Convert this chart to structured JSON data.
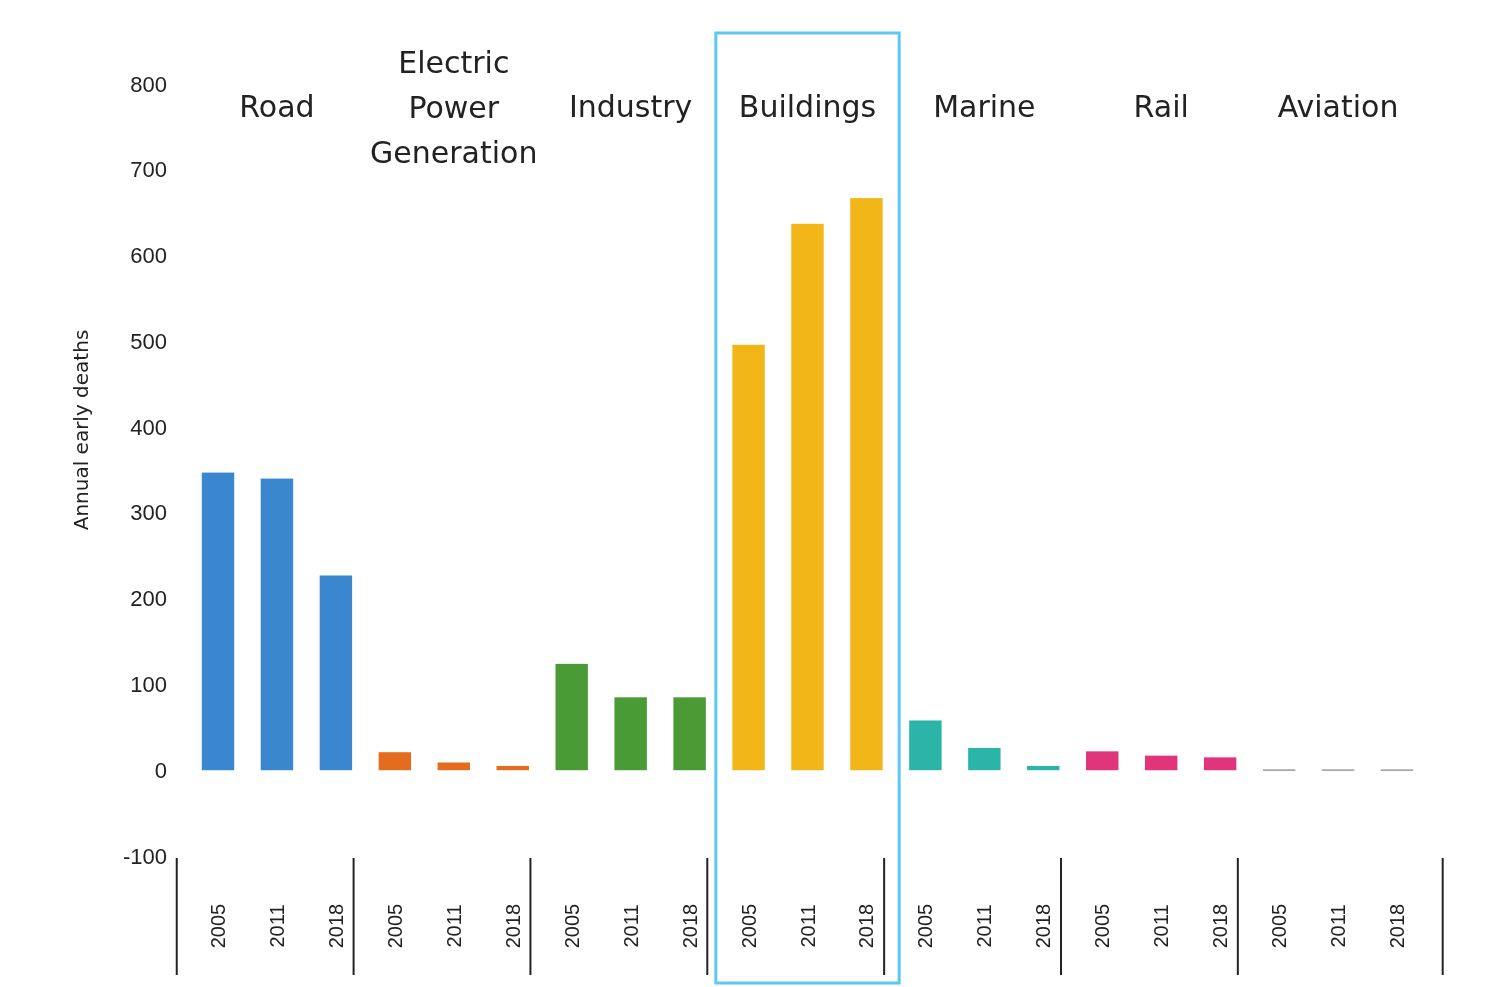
{
  "chart_data": {
    "type": "bar",
    "ylabel": "Annual early deaths",
    "annotations": [
      "Road",
      "Electric Power Generation",
      "Industry",
      "Buildings",
      "Marine",
      "Rail",
      "Aviation"
    ],
    "categories": [
      "2005",
      "2011",
      "2018",
      "2005",
      "2011",
      "2018",
      "2005",
      "2011",
      "2018",
      "2005",
      "2011",
      "2018",
      "2005",
      "2011",
      "2018",
      "2005",
      "2011",
      "2018",
      "2005",
      "2011",
      "2018"
    ],
    "series": [
      {
        "color": "#3a87cf",
        "values": [
          347,
          340,
          227,
          null,
          null,
          null,
          null,
          null,
          null,
          null,
          null,
          null,
          null,
          null,
          null,
          null,
          null,
          null,
          null,
          null,
          null
        ]
      },
      {
        "color": "#e46c1f",
        "values": [
          null,
          null,
          null,
          21,
          9,
          5,
          null,
          null,
          null,
          null,
          null,
          null,
          null,
          null,
          null,
          null,
          null,
          null,
          null,
          null,
          null
        ]
      },
      {
        "color": "#4a9a35",
        "values": [
          null,
          null,
          null,
          null,
          null,
          null,
          124,
          85,
          85,
          null,
          null,
          null,
          null,
          null,
          null,
          null,
          null,
          null,
          null,
          null,
          null
        ]
      },
      {
        "color": "#f2b619",
        "values": [
          null,
          null,
          null,
          null,
          null,
          null,
          null,
          null,
          null,
          496,
          637,
          667,
          null,
          null,
          null,
          null,
          null,
          null,
          null,
          null,
          null
        ]
      },
      {
        "color": "#2bb5a9",
        "values": [
          null,
          null,
          null,
          null,
          null,
          null,
          null,
          null,
          null,
          null,
          null,
          null,
          58,
          26,
          5,
          null,
          null,
          null,
          null,
          null,
          null
        ]
      },
      {
        "color": "#e0357a",
        "values": [
          null,
          null,
          null,
          null,
          null,
          null,
          null,
          null,
          null,
          null,
          null,
          null,
          null,
          null,
          null,
          22,
          17,
          15,
          null,
          null,
          null
        ]
      },
      {
        "color": "#9a9a9a",
        "values": [
          null,
          null,
          null,
          null,
          null,
          null,
          null,
          null,
          null,
          null,
          null,
          null,
          null,
          null,
          null,
          null,
          null,
          null,
          1,
          1,
          1
        ]
      }
    ],
    "ylim": [
      -100,
      800
    ],
    "yticks": [
      -100,
      0,
      100,
      200,
      300,
      400,
      500,
      600,
      700,
      800
    ],
    "grid": false
  }
}
